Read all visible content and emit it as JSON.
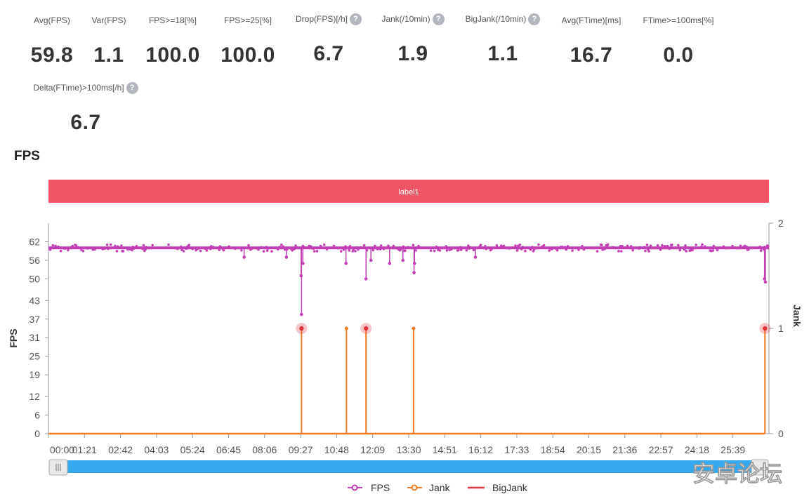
{
  "metrics": [
    {
      "label": "Avg(FPS)",
      "value": "59.8",
      "help": false
    },
    {
      "label": "Var(FPS)",
      "value": "1.1",
      "help": false
    },
    {
      "label": "FPS>=18[%]",
      "value": "100.0",
      "help": false
    },
    {
      "label": "FPS>=25[%]",
      "value": "100.0",
      "help": false
    },
    {
      "label": "Drop(FPS)[/h]",
      "value": "6.7",
      "help": true
    },
    {
      "label": "Jank(/10min)",
      "value": "1.9",
      "help": true
    },
    {
      "label": "BigJank(/10min)",
      "value": "1.1",
      "help": true
    },
    {
      "label": "Avg(FTime)[ms]",
      "value": "16.7",
      "help": false
    },
    {
      "label": "FTime>=100ms[%]",
      "value": "0.0",
      "help": false
    },
    {
      "label": "Delta(FTime)>100ms[/h]",
      "value": "6.7",
      "help": true
    }
  ],
  "help_glyph": "?",
  "watermark": "安卓论坛",
  "chart_data": {
    "type": "line",
    "title": "FPS",
    "band_label": "label1",
    "ylabel": "FPS",
    "y2label": "Jank",
    "ylim": [
      0,
      68
    ],
    "y2lim": [
      0,
      2
    ],
    "yticks": [
      "0",
      "6",
      "12",
      "19",
      "25",
      "31",
      "37",
      "43",
      "50",
      "56",
      "62"
    ],
    "y2ticks": [
      "0",
      "1",
      "2"
    ],
    "xticks": [
      "00:00",
      "01:21",
      "02:42",
      "04:03",
      "05:24",
      "06:45",
      "08:06",
      "09:27",
      "10:48",
      "12:09",
      "13:30",
      "14:51",
      "16:12",
      "17:33",
      "18:54",
      "20:15",
      "21:36",
      "22:57",
      "24:18",
      "25:39"
    ],
    "x_range_seconds": [
      0,
      1620
    ],
    "fps_baseline": 60,
    "fps_dips": [
      {
        "t": 569,
        "fps": 38.5
      },
      {
        "t": 568,
        "fps": 51
      },
      {
        "t": 572,
        "fps": 55
      },
      {
        "t": 669,
        "fps": 55
      },
      {
        "t": 714,
        "fps": 50
      },
      {
        "t": 725,
        "fps": 56
      },
      {
        "t": 767,
        "fps": 55
      },
      {
        "t": 797,
        "fps": 56
      },
      {
        "t": 822,
        "fps": 52
      },
      {
        "t": 823,
        "fps": 55
      },
      {
        "t": 1610,
        "fps": 50
      },
      {
        "t": 1612,
        "fps": 49
      },
      {
        "t": 535,
        "fps": 57
      },
      {
        "t": 440,
        "fps": 57
      },
      {
        "t": 960,
        "fps": 57
      }
    ],
    "jank_events": [
      {
        "t": 569,
        "value": 1,
        "big": true
      },
      {
        "t": 670,
        "value": 1,
        "big": false
      },
      {
        "t": 714,
        "value": 1,
        "big": true
      },
      {
        "t": 821,
        "value": 1,
        "big": false
      },
      {
        "t": 1611,
        "value": 1,
        "big": true
      }
    ],
    "legend": [
      {
        "name": "FPS",
        "color": "#c23fb5"
      },
      {
        "name": "Jank",
        "color": "#f07a22"
      },
      {
        "name": "BigJank",
        "color": "#e0363b"
      }
    ],
    "band_color": "#ee5565",
    "slider_color": "#35a8ee"
  }
}
